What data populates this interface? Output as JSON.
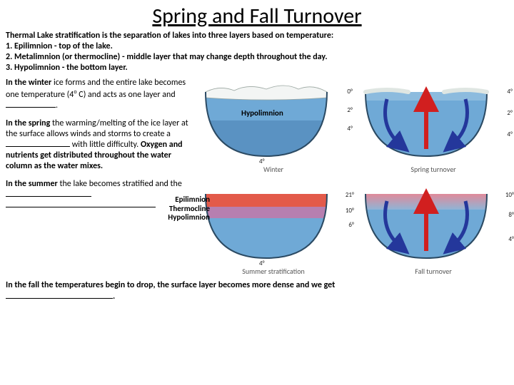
{
  "title": "Spring and Fall Turnover",
  "intro": {
    "lead": "Thermal Lake stratification is the separation of lakes into three layers based on temperature:",
    "l1": "1. Epilimnion - top of the lake.",
    "l2": "2. Metalimnion (or thermocline) - middle layer that may change depth throughout the day.",
    "l3": "3. Hypolimnion - the bottom layer."
  },
  "paragraphs": {
    "winter_a": "In the winter",
    "winter_b": " ice forms and the entire lake becomes one temperature (4",
    "winter_deg": "o",
    "winter_c": " C) and acts as one layer and ",
    "spring_a": "In the spring",
    "spring_b": " the warming/melting of the ice layer at the surface allows winds and storms to create a ",
    "spring_c": " with little difficulty. ",
    "spring_d": "Oxygen and nutrients get distributed throughout the water column as the water mixes.",
    "summer_a": "In the summer",
    "summer_b": " the lake becomes stratified and the ",
    "fall_a": "In the fall",
    "fall_b": " the temperatures begin to drop, the surface layer becomes more dense and we get "
  },
  "diagrams": {
    "winter": {
      "caption": "Winter",
      "temps_right": [
        "0°",
        "2°",
        "4°",
        "4°"
      ],
      "colors": {
        "ice": "#f3f5f4",
        "water": "#6fa9d6",
        "deep": "#5a92c2",
        "outline": "#2b4a63"
      },
      "arrows": []
    },
    "spring": {
      "caption": "Spring turnover",
      "temps_right": [
        "4°",
        "2°",
        "4°"
      ],
      "colors": {
        "water": "#6fa9d6",
        "deep": "#5a92c2",
        "outline": "#2b4a63"
      },
      "arrows": {
        "up_color": "#d11f1f",
        "down_color": "#24379b"
      }
    },
    "summer": {
      "caption": "Summer stratification",
      "temps_right": [
        "21°",
        "10°",
        "6°",
        "4°"
      ],
      "colors": {
        "epi": "#e35a4a",
        "thermo": "#b77fb0",
        "hypo": "#6fa9d6",
        "outline": "#2b4a63"
      },
      "arrows": []
    },
    "fall": {
      "caption": "Fall turnover",
      "temps_right": [
        "10°",
        "8°",
        "4°"
      ],
      "colors": {
        "top": "#d68fa8",
        "water": "#6fa9d6",
        "outline": "#2b4a63"
      },
      "arrows": {
        "up_color": "#d11f1f",
        "down_color": "#24379b"
      }
    }
  },
  "layer_labels": {
    "top": "Hypolimnion",
    "bottom_1": "Epilimnion",
    "bottom_2": "Thermocline",
    "bottom_3": "Hypolimnion"
  },
  "blanks": {
    "w1": 70,
    "w2": 90,
    "w3": 120,
    "w4": 210,
    "w5": 150
  }
}
